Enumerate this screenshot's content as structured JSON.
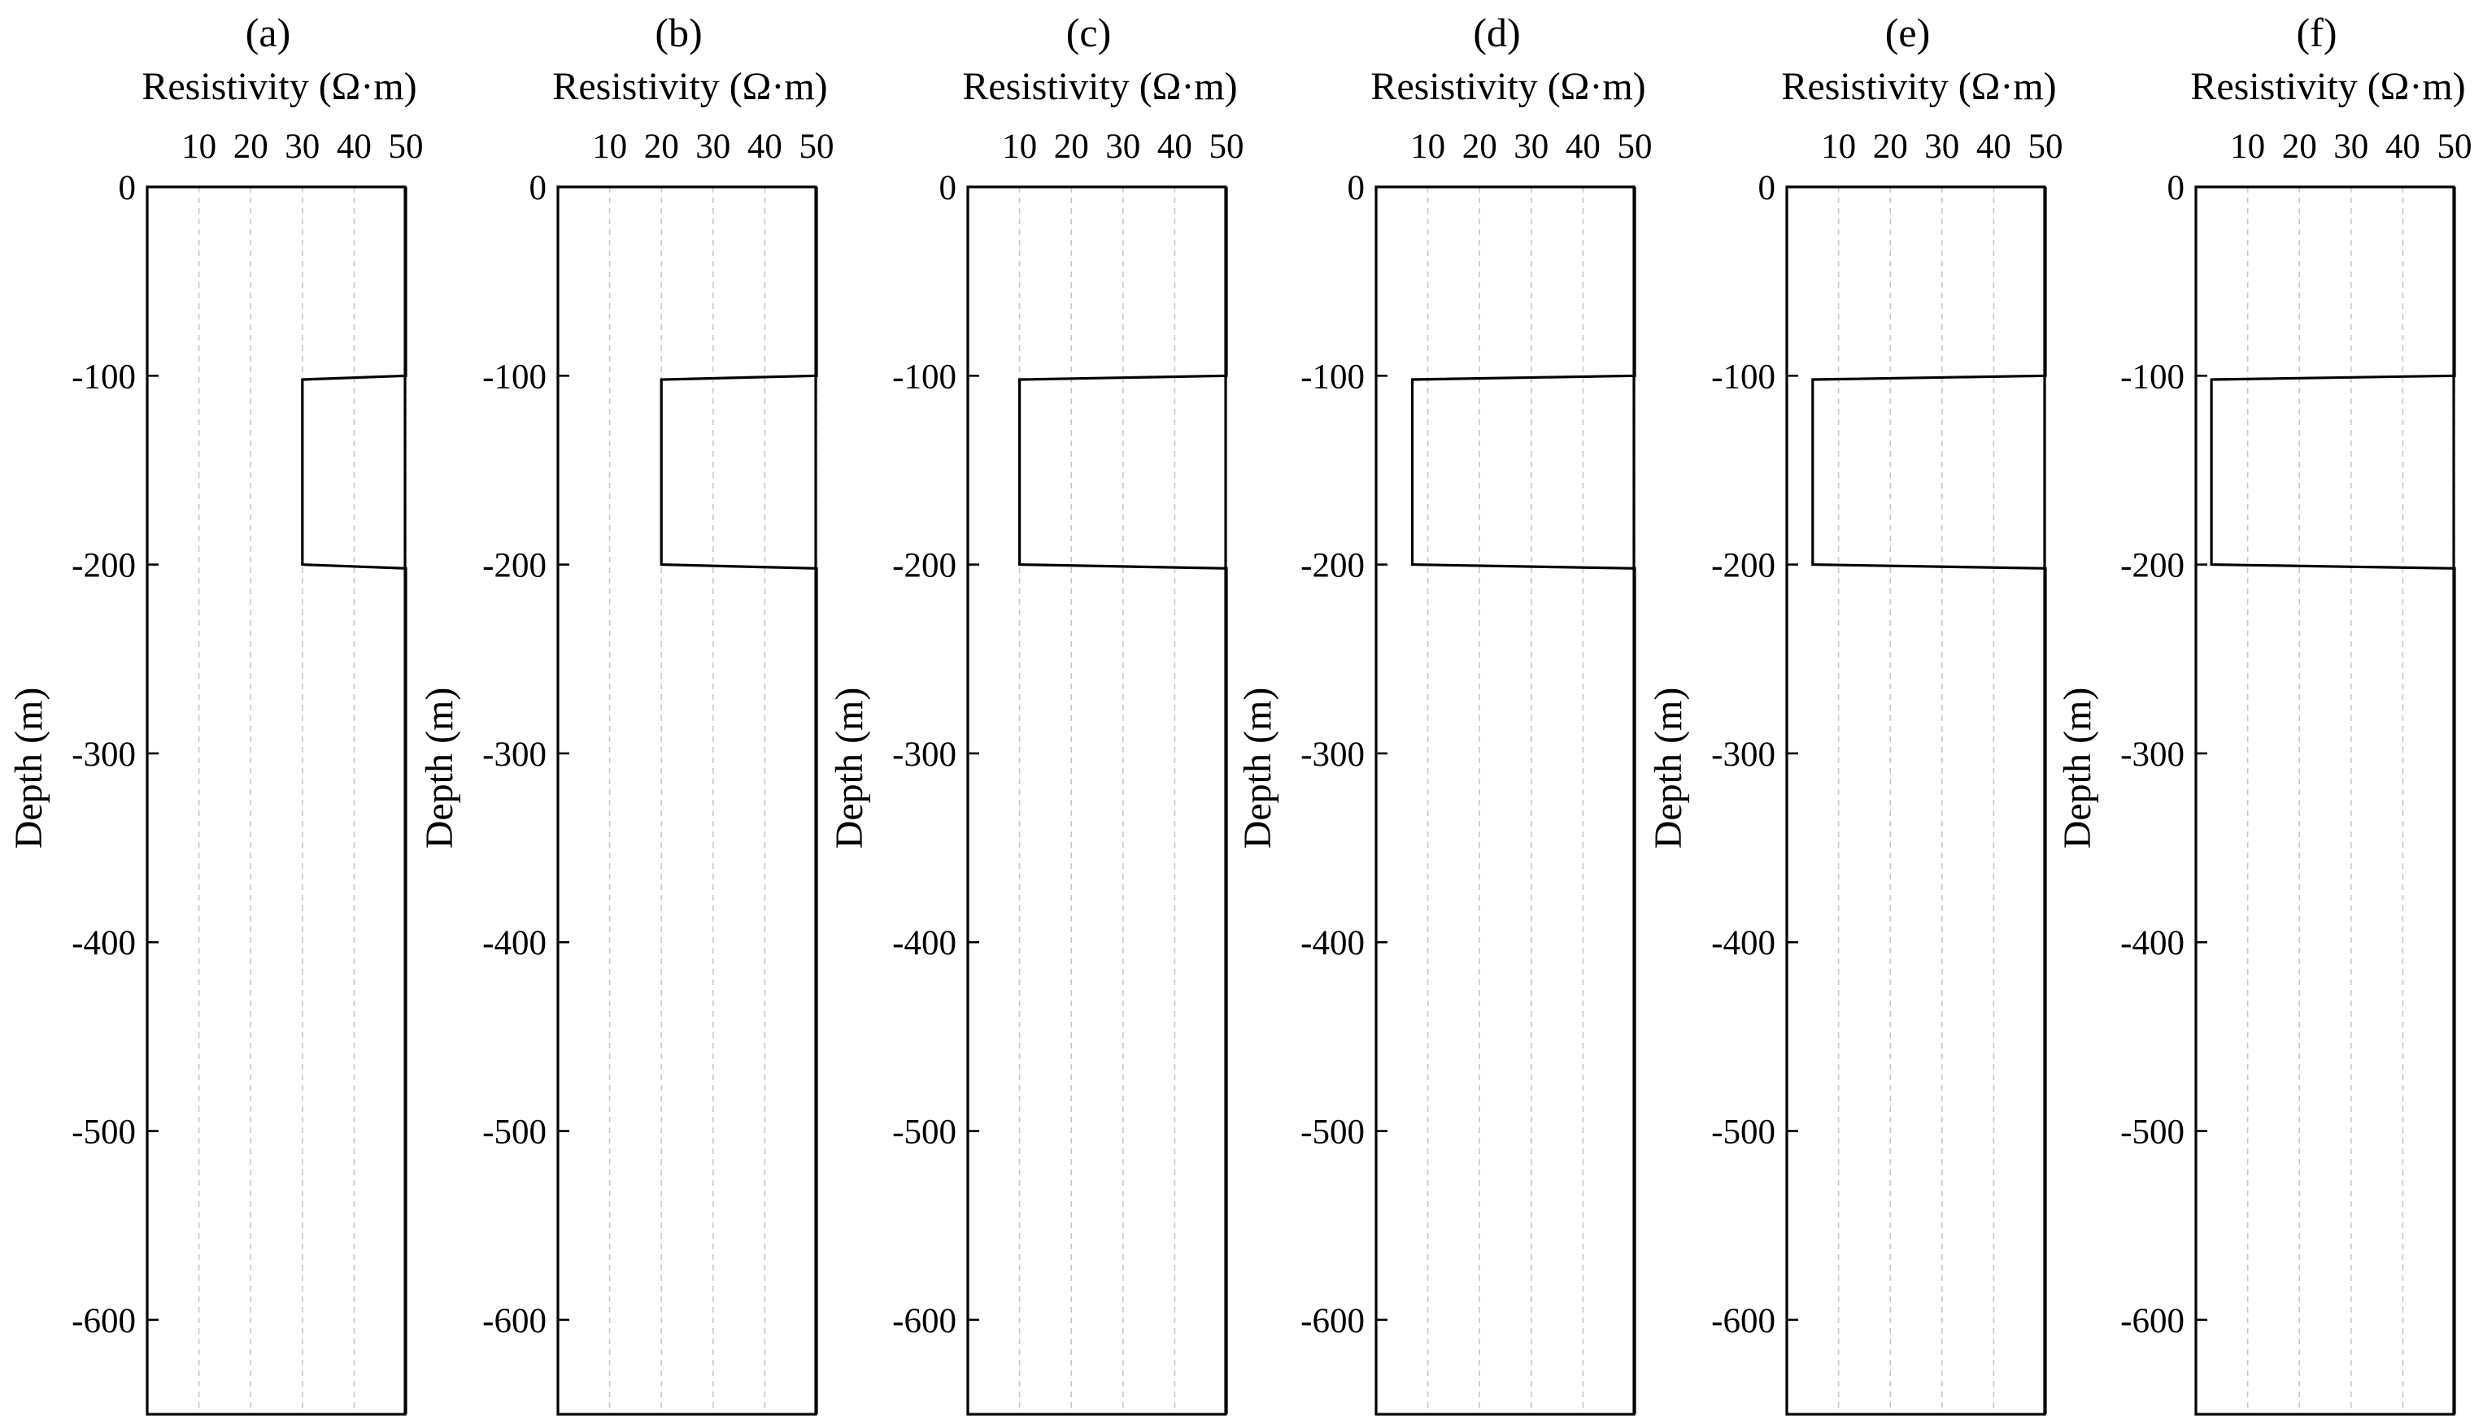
{
  "chart_data": [
    {
      "type": "line",
      "title": "(a)",
      "xlabel": "Resistivity (Ω·m)",
      "ylabel": "Depth (m)",
      "xticks": [
        10,
        20,
        30,
        40,
        50
      ],
      "yticks": [
        0,
        -100,
        -200,
        -300,
        -400,
        -500,
        -600
      ],
      "xlim": [
        0,
        50
      ],
      "ylim": [
        -650,
        0
      ],
      "grid": "vertical dashed",
      "series": [
        {
          "x": [
            50,
            50,
            30,
            30,
            50,
            50
          ],
          "y": [
            0,
            -100,
            -102,
            -200,
            -202,
            -650
          ]
        }
      ]
    },
    {
      "type": "line",
      "title": "(b)",
      "xlabel": "Resistivity (Ω·m)",
      "ylabel": "Depth (m)",
      "xticks": [
        10,
        20,
        30,
        40,
        50
      ],
      "yticks": [
        0,
        -100,
        -200,
        -300,
        -400,
        -500,
        -600
      ],
      "xlim": [
        0,
        50
      ],
      "ylim": [
        -650,
        0
      ],
      "grid": "vertical dashed",
      "series": [
        {
          "x": [
            50,
            50,
            20,
            20,
            50,
            50
          ],
          "y": [
            0,
            -100,
            -102,
            -200,
            -202,
            -650
          ]
        }
      ]
    },
    {
      "type": "line",
      "title": "(c)",
      "xlabel": "Resistivity (Ω·m)",
      "ylabel": "Depth (m)",
      "xticks": [
        10,
        20,
        30,
        40,
        50
      ],
      "yticks": [
        0,
        -100,
        -200,
        -300,
        -400,
        -500,
        -600
      ],
      "xlim": [
        0,
        50
      ],
      "ylim": [
        -650,
        0
      ],
      "grid": "vertical dashed",
      "series": [
        {
          "x": [
            50,
            50,
            10,
            10,
            50,
            50
          ],
          "y": [
            0,
            -100,
            -102,
            -200,
            -202,
            -650
          ]
        }
      ]
    },
    {
      "type": "line",
      "title": "(d)",
      "xlabel": "Resistivity (Ω·m)",
      "ylabel": "Depth (m)",
      "xticks": [
        10,
        20,
        30,
        40,
        50
      ],
      "yticks": [
        0,
        -100,
        -200,
        -300,
        -400,
        -500,
        -600
      ],
      "xlim": [
        0,
        50
      ],
      "ylim": [
        -650,
        0
      ],
      "grid": "vertical dashed",
      "series": [
        {
          "x": [
            50,
            50,
            7,
            7,
            50,
            50
          ],
          "y": [
            0,
            -100,
            -102,
            -200,
            -202,
            -650
          ]
        }
      ]
    },
    {
      "type": "line",
      "title": "(e)",
      "xlabel": "Resistivity (Ω·m)",
      "ylabel": "Depth (m)",
      "xticks": [
        10,
        20,
        30,
        40,
        50
      ],
      "yticks": [
        0,
        -100,
        -200,
        -300,
        -400,
        -500,
        -600
      ],
      "xlim": [
        0,
        50
      ],
      "ylim": [
        -650,
        0
      ],
      "grid": "vertical dashed",
      "series": [
        {
          "x": [
            50,
            50,
            5,
            5,
            50,
            50
          ],
          "y": [
            0,
            -100,
            -102,
            -200,
            -202,
            -650
          ]
        }
      ]
    },
    {
      "type": "line",
      "title": "(f)",
      "xlabel": "Resistivity (Ω·m)",
      "ylabel": "Depth (m)",
      "xticks": [
        10,
        20,
        30,
        40,
        50
      ],
      "yticks": [
        0,
        -100,
        -200,
        -300,
        -400,
        -500,
        -600
      ],
      "xlim": [
        0,
        50
      ],
      "ylim": [
        -650,
        0
      ],
      "grid": "vertical dashed",
      "series": [
        {
          "x": [
            50,
            50,
            3,
            3,
            50,
            50
          ],
          "y": [
            0,
            -100,
            -102,
            -200,
            -202,
            -650
          ]
        }
      ]
    }
  ]
}
